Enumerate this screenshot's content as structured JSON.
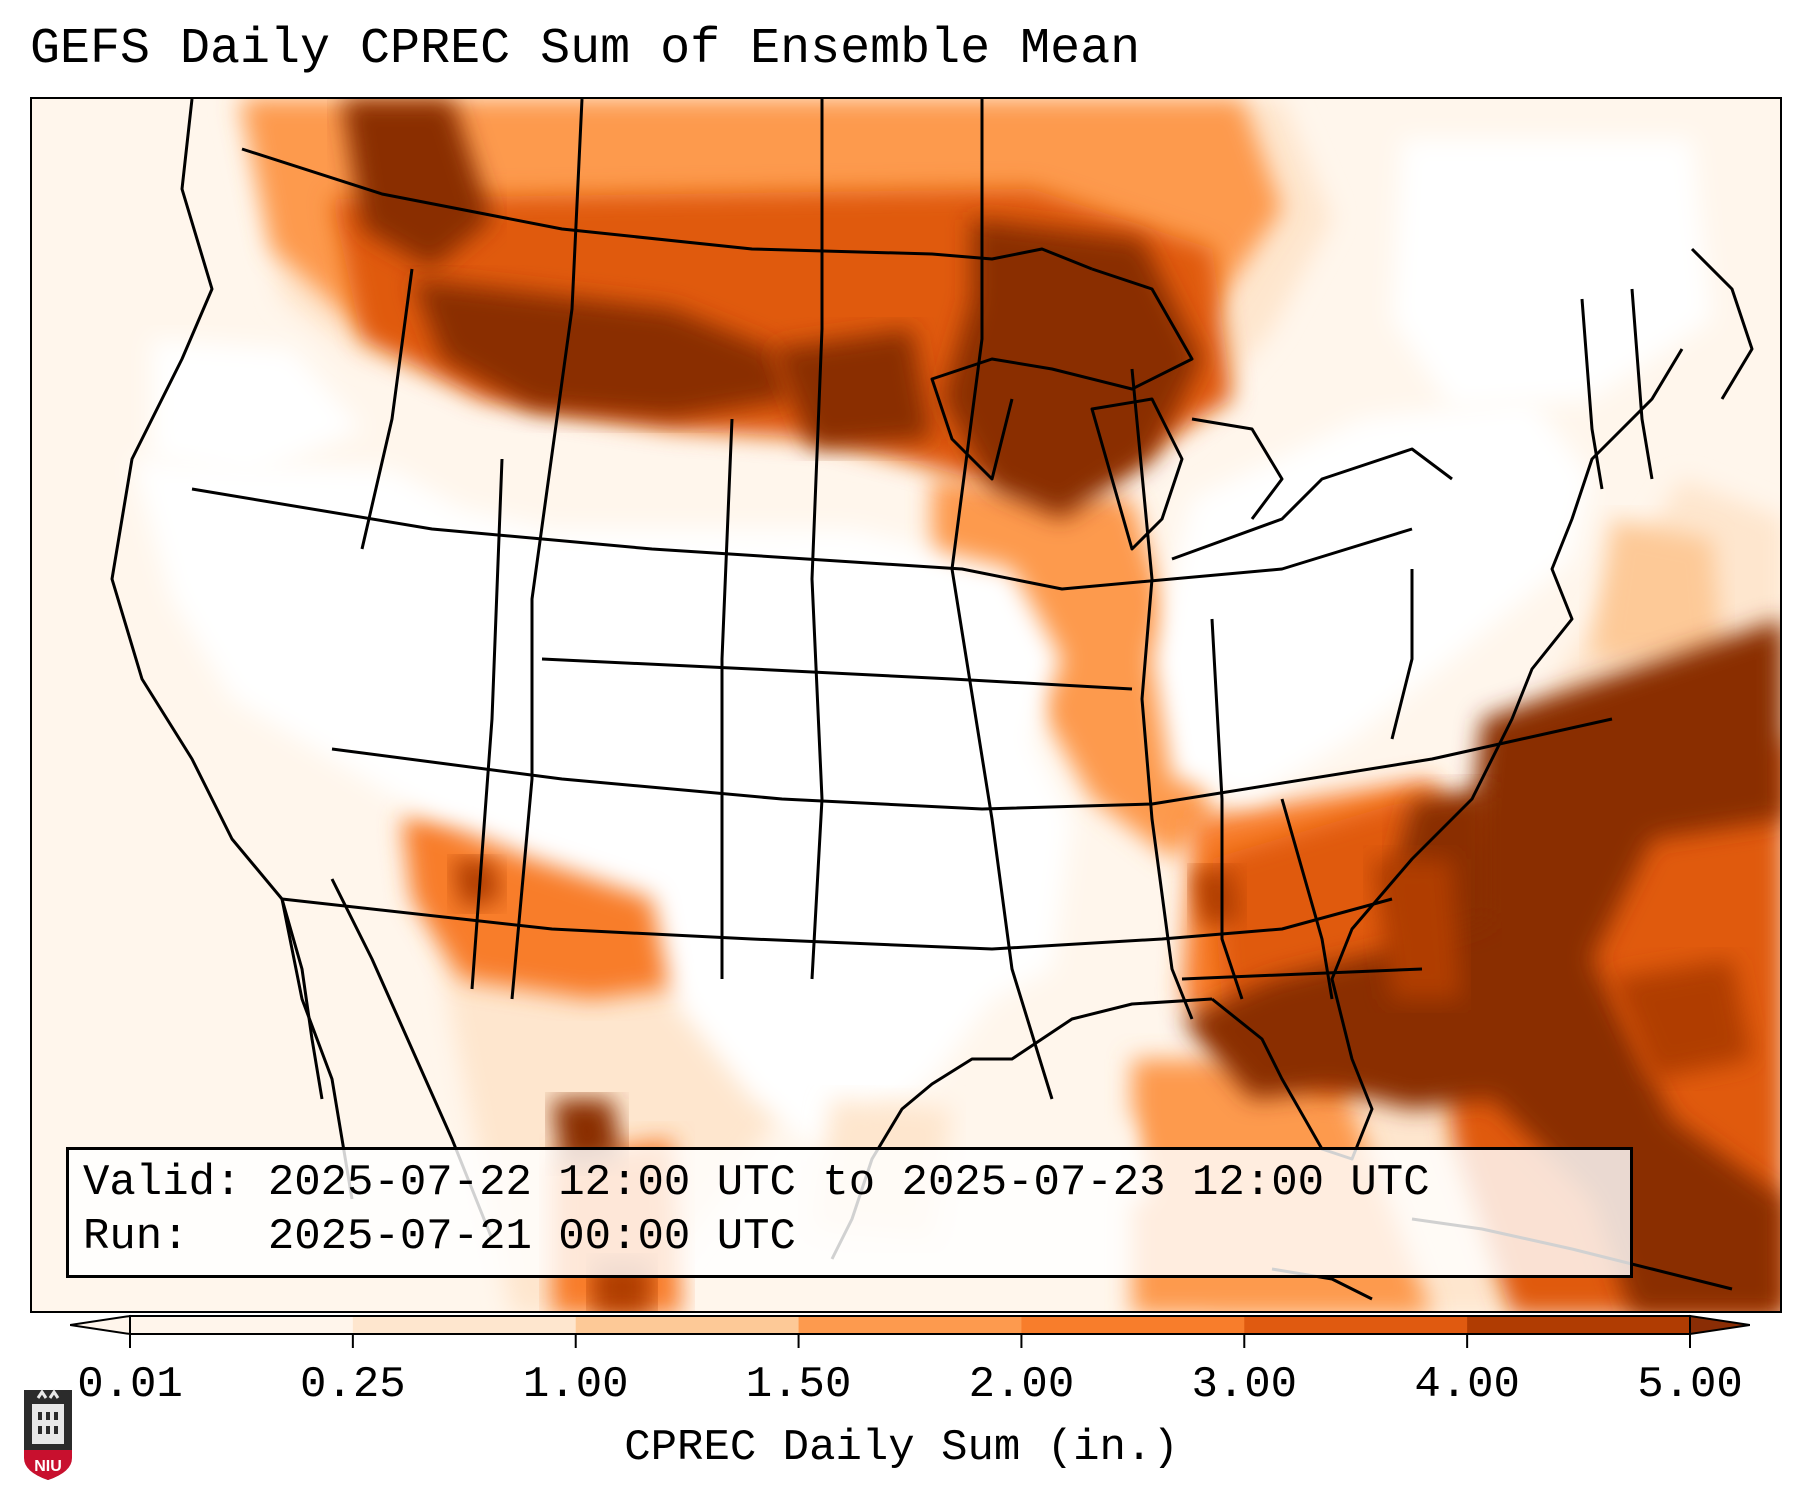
{
  "title": "GEFS Daily CPREC Sum of Ensemble Mean",
  "valid_line": "Valid: 2025-07-22 12:00 UTC to 2025-07-23 12:00 UTC",
  "run_line": "Run:   2025-07-21 00:00 UTC",
  "colorbar": {
    "label": "CPREC Daily Sum (in.)",
    "ticks": [
      "0.01",
      "0.25",
      "1.00",
      "1.50",
      "2.00",
      "3.00",
      "4.00",
      "5.00"
    ],
    "colors": [
      "#fff5eb",
      "#fee6ce",
      "#fdc997",
      "#fd9a4e",
      "#f87d2b",
      "#e05a10",
      "#b03c02",
      "#8a2d05"
    ],
    "extend": "both"
  },
  "logo": {
    "text": "NIU",
    "color": "#c8102e"
  }
}
